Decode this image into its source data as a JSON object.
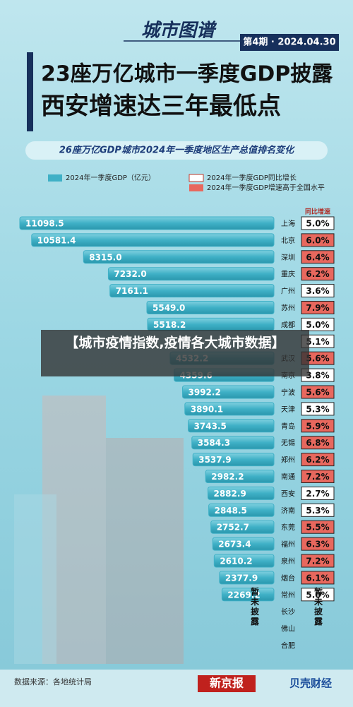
{
  "header": {
    "series_title": "城市图谱",
    "issue": "第4期 · 2024.04.30",
    "headline": [
      "23座万亿城市一季度GDP披露",
      "西安增速达三年最低点"
    ]
  },
  "chart_data": {
    "type": "bar",
    "orientation": "horizontal",
    "title": "26座万亿GDP城市2024年一季度地区生产总值排名变化",
    "categories": [
      "上海",
      "北京",
      "深圳",
      "重庆",
      "广州",
      "苏州",
      "成都",
      null,
      "武汉",
      "南京",
      "宁波",
      "天津",
      "青岛",
      "无锡",
      "郑州",
      "南通",
      "西安",
      "济南",
      "东莞",
      "福州",
      "泉州",
      "烟台",
      "常州",
      "长沙",
      "佛山",
      "合肥"
    ],
    "series": [
      {
        "name": "2024年一季度GDP（亿元）",
        "color": "#3fb0c6",
        "values": [
          11098.5,
          10581.4,
          8315.0,
          7232.0,
          7161.1,
          5549.0,
          5518.2,
          null,
          4532.2,
          4359.6,
          3992.2,
          3890.1,
          3743.5,
          3584.3,
          3537.9,
          2982.2,
          2882.9,
          2848.5,
          2752.7,
          2673.4,
          2610.2,
          2377.9,
          2269.2,
          null,
          null,
          null
        ],
        "value_labels": [
          "11098.5",
          "10581.4",
          "8315.0",
          "7232.0",
          "7161.1",
          "5549.0",
          "5518.2",
          null,
          "4532.2",
          "4359.6",
          "3992.2",
          "3890.1",
          "3743.5",
          "3584.3",
          "3537.9",
          "2982.2",
          "2882.9",
          "2848.5",
          "2752.7",
          "2673.4",
          "2610.2",
          "2377.9",
          "2269.2",
          null,
          null,
          null
        ]
      }
    ],
    "growth": {
      "title": "同比增速",
      "name": "2024年一季度GDP同比增长",
      "above_national_name": "2024年一季度GDP增速高于全国水平",
      "above_national_color": "#e8685e",
      "values": [
        5.0,
        6.0,
        6.4,
        6.2,
        3.6,
        7.9,
        5.0,
        5.1,
        5.6,
        3.8,
        5.6,
        5.3,
        5.9,
        6.8,
        6.2,
        7.2,
        2.7,
        5.3,
        5.5,
        6.3,
        7.2,
        6.1,
        5.0,
        null,
        null,
        null
      ],
      "labels": [
        "5.0%",
        "6.0%",
        "6.4%",
        "6.2%",
        "3.6%",
        "7.9%",
        "5.0%",
        "5.1%",
        "5.6%",
        "3.8%",
        "5.6%",
        "5.3%",
        "5.9%",
        "6.8%",
        "6.2%",
        "7.2%",
        "2.7%",
        "5.3%",
        "5.5%",
        "6.3%",
        "7.2%",
        "6.1%",
        "5.0%",
        null,
        null,
        null
      ],
      "above_national": [
        false,
        true,
        true,
        true,
        false,
        true,
        false,
        false,
        true,
        false,
        true,
        false,
        true,
        true,
        true,
        true,
        false,
        false,
        true,
        true,
        true,
        true,
        false,
        null,
        null,
        null
      ]
    },
    "undisclosed_label": "暂未披露"
  },
  "overlay": "【城市疫情指数,疫情各大城市数据】",
  "footer": {
    "source": "数据来源：各地统计局",
    "brand1": "新京报",
    "brand2": "贝壳财经"
  }
}
